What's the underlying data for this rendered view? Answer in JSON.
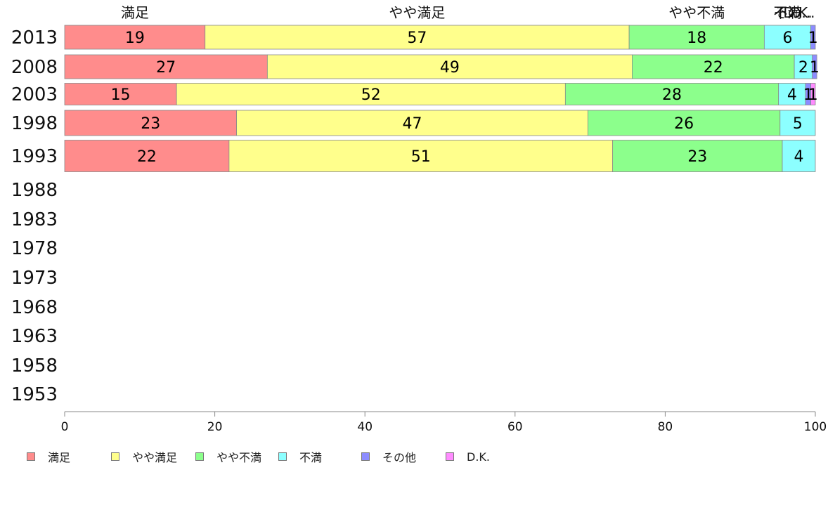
{
  "chart_data": {
    "type": "bar",
    "orientation": "horizontal",
    "stacked": true,
    "categories": [
      "2013",
      "2008",
      "2003",
      "1998",
      "1993",
      "1988",
      "1983",
      "1978",
      "1973",
      "1968",
      "1963",
      "1958",
      "1953"
    ],
    "series": [
      {
        "name": "満足",
        "color": "#ff8c8c",
        "values": [
          18.7,
          27.0,
          14.9,
          22.9,
          21.9,
          null,
          null,
          null,
          null,
          null,
          null,
          null,
          null
        ],
        "labels": [
          "19",
          "27",
          "15",
          "23",
          "22"
        ]
      },
      {
        "name": "やや満足",
        "color": "#ffff8c",
        "values": [
          56.5,
          48.6,
          51.8,
          46.8,
          51.1,
          null,
          null,
          null,
          null,
          null,
          null,
          null,
          null
        ],
        "labels": [
          "57",
          "49",
          "52",
          "47",
          "51"
        ]
      },
      {
        "name": "やや不満",
        "color": "#8cff8c",
        "values": [
          18.0,
          21.6,
          28.4,
          25.6,
          22.6,
          null,
          null,
          null,
          null,
          null,
          null,
          null,
          null
        ],
        "labels": [
          "18",
          "22",
          "28",
          "26",
          "23"
        ]
      },
      {
        "name": "不満",
        "color": "#8cffff",
        "values": [
          6.2,
          2.4,
          3.6,
          4.7,
          4.4,
          null,
          null,
          null,
          null,
          null,
          null,
          null,
          null
        ],
        "labels": [
          "6",
          "2",
          "4",
          "5",
          "4"
        ]
      },
      {
        "name": "その他",
        "color": "#8c8cff",
        "values": [
          0.6,
          0.6,
          0.7,
          0.0,
          0.0,
          null,
          null,
          null,
          null,
          null,
          null,
          null,
          null
        ],
        "labels": [
          "1",
          "1",
          "1",
          "",
          ""
        ]
      },
      {
        "name": "D.K.",
        "color": "#ff8cff",
        "values": [
          0.0,
          0.0,
          0.6,
          0.0,
          0.0,
          null,
          null,
          null,
          null,
          null,
          null,
          null,
          null
        ],
        "labels": [
          "",
          "",
          "1",
          "",
          ""
        ]
      }
    ],
    "top_labels": [
      "満足",
      "やや満足",
      "やや不満",
      "不満",
      "その...",
      "D.K."
    ],
    "xlim": [
      0,
      100
    ],
    "xticks": [
      "0",
      "20",
      "40",
      "60",
      "80",
      "100"
    ],
    "grid": false,
    "legend": "bottom"
  }
}
